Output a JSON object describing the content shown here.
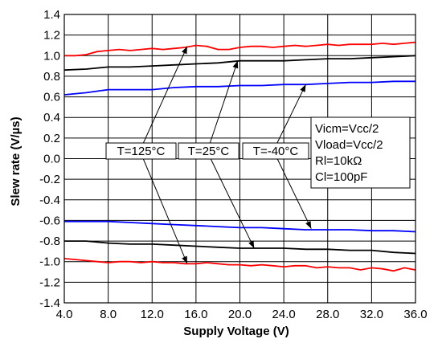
{
  "chart_data": {
    "type": "line",
    "xlabel": "Supply Voltage (V)",
    "ylabel": "Slew rate (V/µs)",
    "xlim": [
      4,
      36
    ],
    "ylim": [
      -1.4,
      1.4
    ],
    "x_ticks": [
      "4.0",
      "8.0",
      "12.0",
      "16.0",
      "20.0",
      "24.0",
      "28.0",
      "32.0",
      "36.0"
    ],
    "y_ticks": [
      "1.4",
      "1.2",
      "1.0",
      "0.8",
      "0.6",
      "0.4",
      "0.2",
      "0.0",
      "-0.2",
      "-0.4",
      "-0.6",
      "-0.8",
      "-1.0",
      "-1.2",
      "-1.4"
    ],
    "grid": true,
    "series": [
      {
        "label_id": "t125",
        "color": "#ff0000",
        "polarity": "rise",
        "x": [
          4,
          5,
          6,
          7,
          8,
          9,
          10,
          11,
          12,
          13,
          14,
          15,
          16,
          17,
          18,
          19,
          20,
          21,
          22,
          23,
          24,
          25,
          26,
          27,
          28,
          29,
          30,
          31,
          32,
          33,
          34,
          35,
          36
        ],
        "y": [
          1.0,
          1.0,
          1.01,
          1.04,
          1.05,
          1.06,
          1.05,
          1.06,
          1.07,
          1.06,
          1.07,
          1.08,
          1.1,
          1.09,
          1.06,
          1.06,
          1.08,
          1.09,
          1.09,
          1.08,
          1.09,
          1.1,
          1.09,
          1.1,
          1.11,
          1.1,
          1.11,
          1.11,
          1.11,
          1.12,
          1.11,
          1.12,
          1.13
        ]
      },
      {
        "label_id": "t25",
        "color": "#000000",
        "polarity": "rise",
        "x": [
          4,
          6,
          8,
          10,
          12,
          14,
          16,
          18,
          20,
          22,
          24,
          26,
          28,
          30,
          32,
          34,
          36
        ],
        "y": [
          0.86,
          0.87,
          0.89,
          0.89,
          0.9,
          0.91,
          0.92,
          0.93,
          0.95,
          0.95,
          0.95,
          0.96,
          0.97,
          0.97,
          0.98,
          0.99,
          1.0
        ]
      },
      {
        "label_id": "tm40",
        "color": "#0000ff",
        "polarity": "rise",
        "x": [
          4,
          6,
          8,
          10,
          12,
          14,
          16,
          18,
          20,
          22,
          24,
          26,
          28,
          30,
          32,
          34,
          36
        ],
        "y": [
          0.62,
          0.64,
          0.67,
          0.67,
          0.67,
          0.69,
          0.7,
          0.7,
          0.71,
          0.71,
          0.72,
          0.72,
          0.73,
          0.74,
          0.74,
          0.75,
          0.75
        ]
      },
      {
        "label_id": "tm40",
        "color": "#0000ff",
        "polarity": "fall",
        "x": [
          4,
          6,
          8,
          10,
          12,
          14,
          16,
          18,
          20,
          22,
          24,
          26,
          28,
          30,
          32,
          34,
          36
        ],
        "y": [
          -0.61,
          -0.61,
          -0.61,
          -0.62,
          -0.63,
          -0.64,
          -0.65,
          -0.66,
          -0.67,
          -0.67,
          -0.68,
          -0.69,
          -0.69,
          -0.69,
          -0.7,
          -0.7,
          -0.71
        ]
      },
      {
        "label_id": "t25",
        "color": "#000000",
        "polarity": "fall",
        "x": [
          4,
          6,
          8,
          10,
          12,
          14,
          16,
          18,
          20,
          22,
          24,
          26,
          28,
          30,
          32,
          34,
          36
        ],
        "y": [
          -0.8,
          -0.8,
          -0.82,
          -0.83,
          -0.83,
          -0.84,
          -0.85,
          -0.86,
          -0.87,
          -0.87,
          -0.87,
          -0.88,
          -0.88,
          -0.89,
          -0.89,
          -0.91,
          -0.92
        ]
      },
      {
        "label_id": "t125",
        "color": "#ff0000",
        "polarity": "fall",
        "x": [
          4,
          5,
          6,
          7,
          8,
          9,
          10,
          11,
          12,
          13,
          14,
          15,
          16,
          17,
          18,
          19,
          20,
          21,
          22,
          23,
          24,
          25,
          26,
          27,
          28,
          29,
          30,
          31,
          32,
          33,
          34,
          35,
          36
        ],
        "y": [
          -0.97,
          -0.98,
          -0.99,
          -1.0,
          -1.01,
          -1.0,
          -1.0,
          -1.01,
          -1.0,
          -1.01,
          -1.01,
          -1.02,
          -1.02,
          -1.01,
          -1.02,
          -1.03,
          -1.03,
          -1.04,
          -1.03,
          -1.04,
          -1.05,
          -1.04,
          -1.04,
          -1.06,
          -1.05,
          -1.06,
          -1.06,
          -1.08,
          -1.06,
          -1.07,
          -1.09,
          -1.06,
          -1.08
        ]
      }
    ],
    "annotations": [
      {
        "id": "t125",
        "text": "T=125°C",
        "color": "#ff0000",
        "pointer_targets": [
          [
            15.2,
            1.09
          ],
          [
            15.2,
            -1.02
          ]
        ]
      },
      {
        "id": "t25",
        "text": "T=25°C",
        "color": "#000000",
        "pointer_targets": [
          [
            19.8,
            0.95
          ],
          [
            21.3,
            -0.87
          ]
        ]
      },
      {
        "id": "tm40",
        "text": "T=-40°C",
        "color": "#0000ff",
        "pointer_targets": [
          [
            26.0,
            0.72
          ],
          [
            26.5,
            -0.68
          ]
        ]
      }
    ],
    "conditions": [
      "Vicm=Vcc/2",
      "Vload=Vcc/2",
      "Rl=10kΩ",
      "Cl=100pF"
    ]
  }
}
